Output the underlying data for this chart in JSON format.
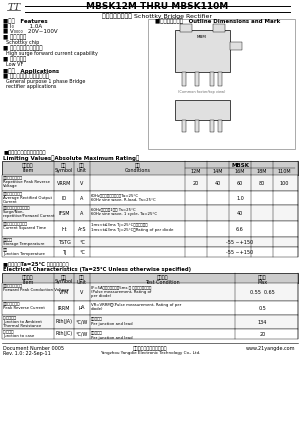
{
  "title": "MBSK12M THRU MBSK110M",
  "subtitle": "肖特基桥式整流器 Schottky Bridge Rectifier",
  "logo_text": "TT",
  "features_header": "■特小   Features",
  "features": [
    "■ I₂         1.0A",
    "■ V₂₂₂₂    20V~100V",
    "■ 肖特基芝片",
    "   Schottky chip",
    "■ 耶正向洎洎电流能力强",
    "   High surge forward current capability",
    "■ 低正向电压",
    "   Low VF"
  ],
  "applications_header": "■用途   Applications",
  "applications": [
    "■ 一般电源单相桥式整流应用",
    "   General purpose 1 phase Bridge",
    "   rectifier applications"
  ],
  "outline_header": "■外形尺寸和印记   Outline Dimensions and Mark",
  "limiting_header": "■限制値（绝对最大额定値）",
  "limiting_header2": "Limiting Values（Absolute Maximum Rating）",
  "lv_cols": [
    "参数名称\nItem",
    "符号\nSymbol",
    "单位\nUnit",
    "条件\nConditions",
    "12M",
    "14M",
    "16M",
    "18M",
    "110M"
  ],
  "lv_rows": [
    [
      "反向重复峰値电压\nRepetitive Peak Reverse\nVoltage",
      "V₂₂₂",
      "V",
      "",
      "20",
      "40",
      "60",
      "80",
      "100"
    ],
    [
      "平均整流输出电流\nAverage Rectified Output\nCurrent",
      "I₂",
      "A",
      "60Hz正弦波，阻性负载， T₂=25°C\n60Hz sine wave, R-load, T₂=25°C",
      "",
      "",
      "1.0",
      "",
      ""
    ],
    [
      "正向（不重复）洎洎电流\nSurge/Non-\nrepetitive/Forward Current",
      "I₂₂₂₂",
      "A",
      "60Hz正弦波，1周期 T₂=25°C\n60Hz sine wave, 1 cycle, T₂=25°C",
      "",
      "",
      "40",
      "",
      ""
    ],
    [
      "正向洎洎电流的平方和\n这流器所指定的正向电流\nCurrent Squared Time",
      "I₂t",
      "A²S",
      "1ms＜≤t≤3ms T₂=25°C， 单个二极管\n1ms＜≤t≤3ms T₂=25°C， Rating of per diode",
      "",
      "",
      "6.6",
      "",
      ""
    ],
    [
      "储存温度\nStorage Temperature",
      "T₂₂",
      "°C",
      "",
      "",
      "",
      "-55 ~+150",
      "",
      ""
    ],
    [
      "结温\nJunction Temperature",
      "T₂",
      "°C",
      "",
      "",
      "",
      "-55 ~+150",
      "",
      ""
    ]
  ],
  "elec_header": "■电特性（T₂=25°C 除另有包定）",
  "elec_header2": "Electrical Characteristics (T₂=25°C Unless otherwise specified)",
  "ec_cols": [
    "参数名称\nItem",
    "符号\nSymbol",
    "单位\nUnit",
    "测试条件\nTest Condition",
    "最大値\nMax"
  ],
  "ec_rows": [
    [
      "正向導通峰値电压\nForward Peak Conduction Voltage",
      "V₂₂",
      "V",
      "I₂=5A, 测试时间小于小于 5ms 且 没有其他外部电流\n(Pulse measurement, Rating of\nper diode)",
      "0.55  0.65"
    ],
    [
      "反向小部分电流\nPeak Reverse Current",
      "I₂₂₂",
      "μA",
      "V₂=V₂₂₂₂, (Pulse measurement, Rating of per\ndiode)",
      "0.5"
    ],
    [
      "结-环境热阻\nJunction to Ambient\nThermal Resistance",
      "R₂₂(₂₂)",
      "°C/W",
      "每个二极管\nPer junction and lead",
      "134"
    ],
    [
      "结-壳热阻\nJunction to case",
      "R₂₂(₂₂)",
      "°C/W",
      "每个二极管\nPer junction and lead",
      "20"
    ]
  ],
  "footer_doc": "Document Number 0005",
  "footer_rev": "Rev. 1.0: 22-Sep-11",
  "footer_company_cn": "扬州洋子光电科技有限公司",
  "footer_company_en": "Yangzhou Yangdie Electronic Technology Co., Ltd.",
  "footer_web": "www.21yangde.com",
  "bg_color": "#ffffff",
  "header_bg": "#d0d0d0",
  "table_line_color": "#555555",
  "text_color": "#000000"
}
